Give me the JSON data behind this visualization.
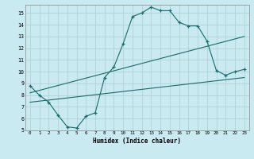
{
  "xlabel": "Humidex (Indice chaleur)",
  "bg_color": "#c8eaf0",
  "line_color": "#1a6b6b",
  "grid_color": "#aacfcf",
  "xlim": [
    -0.5,
    23.5
  ],
  "ylim": [
    5,
    15.7
  ],
  "yticks": [
    5,
    6,
    7,
    8,
    9,
    10,
    11,
    12,
    13,
    14,
    15
  ],
  "xticks": [
    0,
    1,
    2,
    3,
    4,
    5,
    6,
    7,
    8,
    9,
    10,
    11,
    12,
    13,
    14,
    15,
    16,
    17,
    18,
    19,
    20,
    21,
    22,
    23
  ],
  "main_x": [
    0,
    1,
    2,
    3,
    4,
    5,
    6,
    7,
    8,
    9,
    10,
    11,
    12,
    13,
    14,
    15,
    16,
    17,
    18,
    19,
    20,
    21,
    22,
    23
  ],
  "main_y": [
    8.8,
    8.0,
    7.4,
    6.3,
    5.3,
    5.2,
    6.2,
    6.5,
    9.5,
    10.4,
    12.4,
    14.7,
    15.0,
    15.5,
    15.2,
    15.2,
    14.2,
    13.9,
    13.9,
    12.6,
    10.1,
    9.7,
    10.0,
    10.2
  ],
  "line1_x": [
    0,
    23
  ],
  "line1_y": [
    8.2,
    13.0
  ],
  "line2_x": [
    0,
    23
  ],
  "line2_y": [
    7.4,
    9.5
  ]
}
